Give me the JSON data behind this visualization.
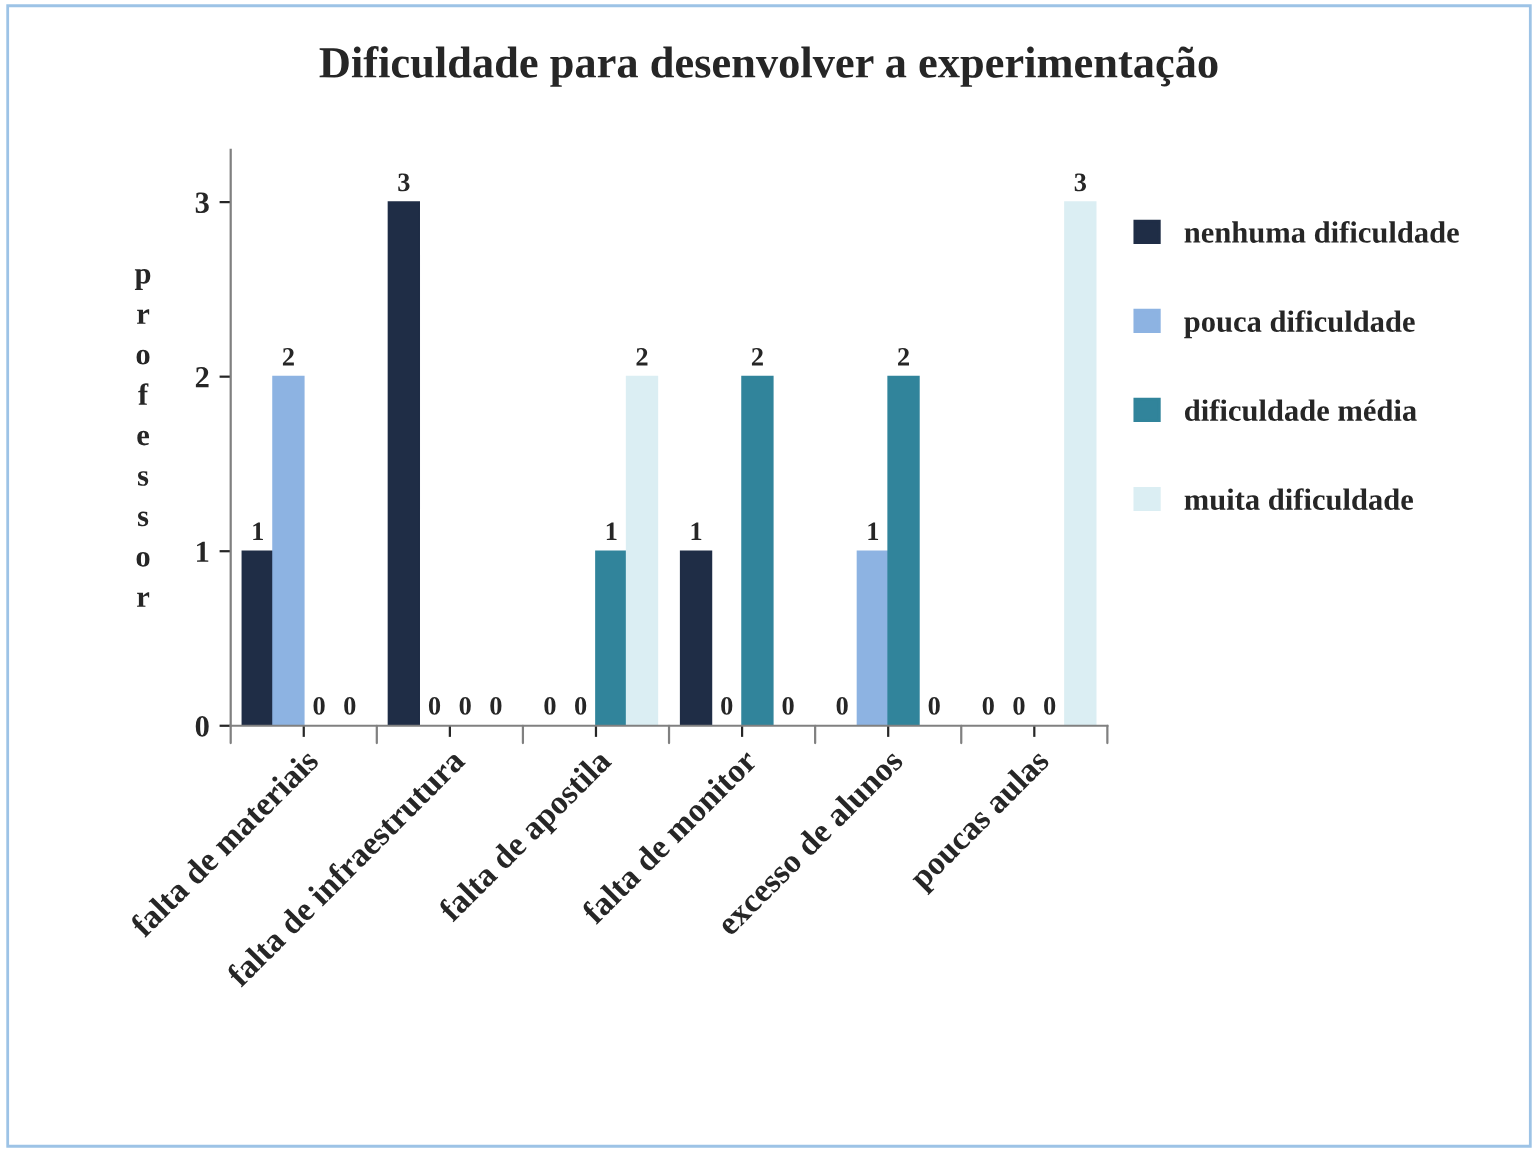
{
  "chart_data": {
    "type": "bar",
    "title": "Dificuldade para desenvolver a experimentação",
    "ylabel": "professor",
    "categories": [
      "falta de materiais",
      "falta de infraestrutura",
      "falta de apostila",
      "falta de monitor",
      "excesso de alunos",
      "poucas aulas"
    ],
    "series": [
      {
        "name": "nenhuma dificuldade",
        "color": "#1f2d46",
        "values": [
          1,
          3,
          0,
          1,
          0,
          0
        ]
      },
      {
        "name": "pouca dificuldade",
        "color": "#8db3e2",
        "values": [
          2,
          0,
          0,
          0,
          1,
          0
        ]
      },
      {
        "name": "dificuldade média",
        "color": "#31849b",
        "values": [
          0,
          0,
          1,
          2,
          2,
          0
        ]
      },
      {
        "name": "muita dificuldade",
        "color": "#dbeef3",
        "values": [
          0,
          0,
          2,
          0,
          0,
          3
        ]
      }
    ],
    "ylim": [
      0,
      3.3
    ],
    "yticks": [
      0,
      1,
      2,
      3
    ],
    "grid": false,
    "legend": "right",
    "data_labels": true
  }
}
